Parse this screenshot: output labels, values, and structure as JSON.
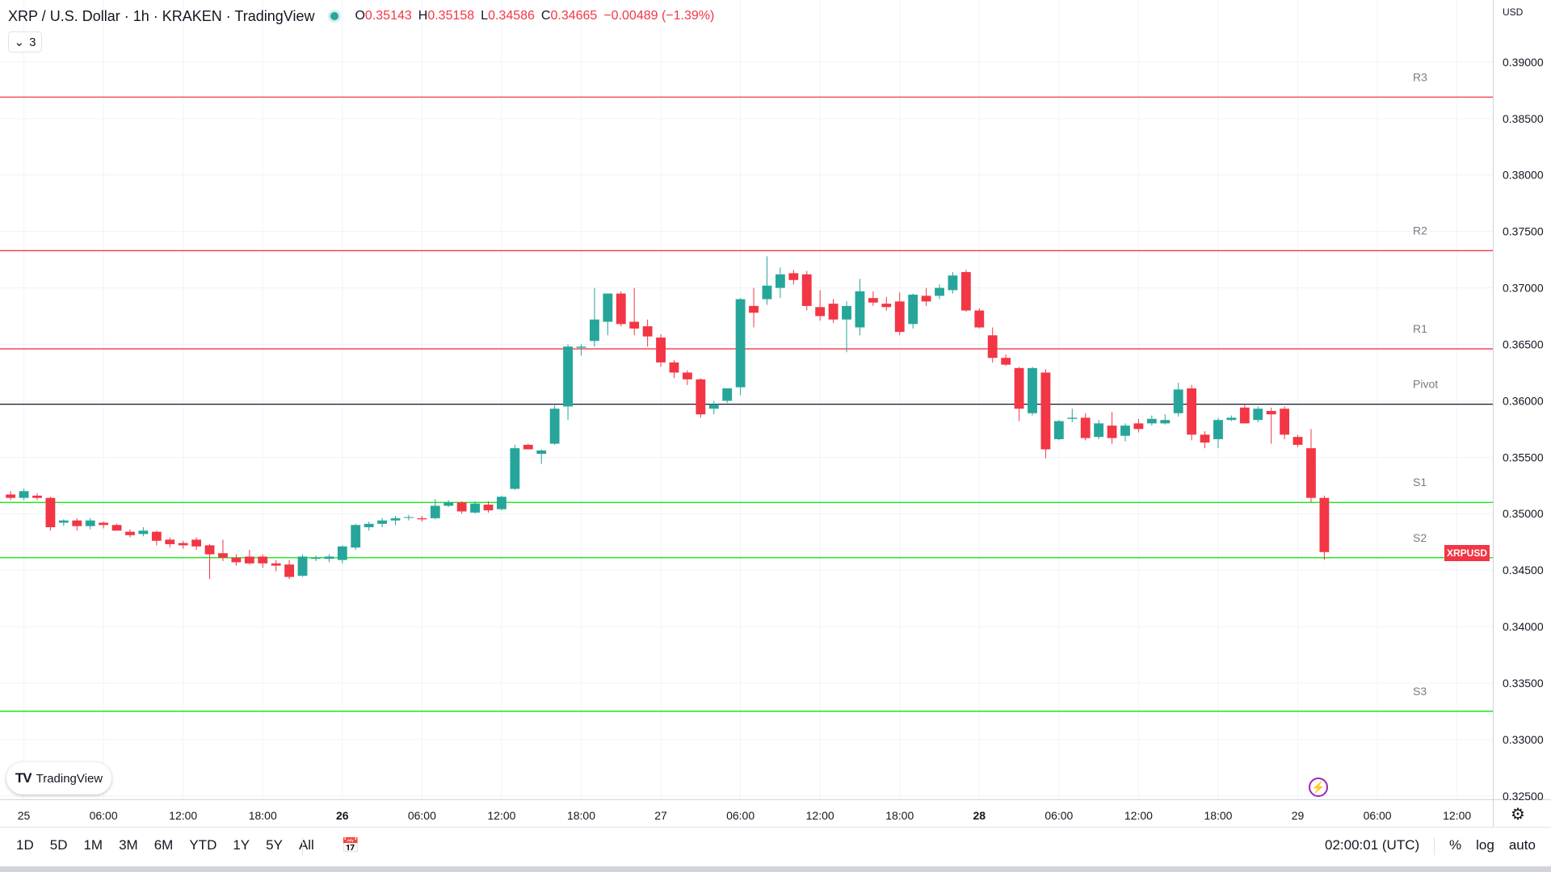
{
  "header": {
    "title": "XRP / U.S. Dollar · 1h · KRAKEN · TradingView",
    "ohlc": [
      {
        "key": "O",
        "value": "0.35143"
      },
      {
        "key": "H",
        "value": "0.35158"
      },
      {
        "key": "L",
        "value": "0.34586"
      },
      {
        "key": "C",
        "value": "0.34665"
      },
      {
        "key": "",
        "value": "−0.00489 (−1.39%)"
      }
    ],
    "indicator_count": "3",
    "status_color": "#26a69a"
  },
  "price_axis": {
    "currency": "USD"
  },
  "current_price_label": "XRPUSD",
  "bottom": {
    "timeframes": [
      "1D",
      "5D",
      "1M",
      "3M",
      "6M",
      "YTD",
      "1Y",
      "5Y",
      "All"
    ],
    "clock": "02:00:01 (UTC)",
    "percent": "%",
    "log": "log",
    "auto": "auto"
  },
  "logo_text": "TradingView",
  "colors": {
    "up": "#26a69a",
    "down": "#f23645",
    "resistance": "#f23645",
    "support": "#00e600",
    "pivot": "#131722"
  },
  "chart_data": {
    "type": "candlestick",
    "symbol": "XRP / U.S. Dollar",
    "interval": "1h",
    "exchange": "KRAKEN",
    "x_tick_labels": [
      {
        "hour": 0,
        "label": "25"
      },
      {
        "hour": 6,
        "label": "06:00"
      },
      {
        "hour": 12,
        "label": "12:00"
      },
      {
        "hour": 18,
        "label": "18:00"
      },
      {
        "hour": 24,
        "label": "26"
      },
      {
        "hour": 30,
        "label": "06:00"
      },
      {
        "hour": 36,
        "label": "12:00"
      },
      {
        "hour": 42,
        "label": "18:00"
      },
      {
        "hour": 48,
        "label": "27"
      },
      {
        "hour": 54,
        "label": "06:00"
      },
      {
        "hour": 60,
        "label": "12:00"
      },
      {
        "hour": 66,
        "label": "18:00"
      },
      {
        "hour": 72,
        "label": "28"
      },
      {
        "hour": 78,
        "label": "06:00"
      },
      {
        "hour": 84,
        "label": "12:00"
      },
      {
        "hour": 90,
        "label": "18:00"
      },
      {
        "hour": 96,
        "label": "29"
      },
      {
        "hour": 102,
        "label": "06:00"
      },
      {
        "hour": 108,
        "label": "12:00"
      }
    ],
    "bold_ticks": [
      "26",
      "28"
    ],
    "y_ticks": [
      "0.32500",
      "0.33000",
      "0.33500",
      "0.34000",
      "0.34500",
      "0.35000",
      "0.35500",
      "0.36000",
      "0.36500",
      "0.37000",
      "0.37500",
      "0.38000",
      "0.38500",
      "0.39000"
    ],
    "ylim": [
      0.3247,
      0.3955
    ],
    "xlim_hours": [
      -1.8,
      110.7
    ],
    "levels": [
      {
        "name": "R3",
        "value": 0.3869,
        "kind": "resistance"
      },
      {
        "name": "R2",
        "value": 0.3733,
        "kind": "resistance"
      },
      {
        "name": "R1",
        "value": 0.3646,
        "kind": "resistance"
      },
      {
        "name": "Pivot",
        "value": 0.3597,
        "kind": "pivot"
      },
      {
        "name": "S1",
        "value": 0.351,
        "kind": "support"
      },
      {
        "name": "S2",
        "value": 0.3461,
        "kind": "support"
      },
      {
        "name": "S3",
        "value": 0.3325,
        "kind": "support"
      }
    ],
    "candles": [
      [
        -1,
        0.3517,
        0.352,
        0.3512,
        0.3514
      ],
      [
        0,
        0.3514,
        0.3522,
        0.3512,
        0.352
      ],
      [
        1,
        0.3516,
        0.3518,
        0.3512,
        0.3514
      ],
      [
        2,
        0.3514,
        0.3515,
        0.3485,
        0.3488
      ],
      [
        3,
        0.3492,
        0.3495,
        0.3489,
        0.3494
      ],
      [
        4,
        0.3494,
        0.3496,
        0.3485,
        0.3489
      ],
      [
        5,
        0.3489,
        0.3496,
        0.3486,
        0.3494
      ],
      [
        6,
        0.3492,
        0.3493,
        0.3487,
        0.349
      ],
      [
        7,
        0.349,
        0.3491,
        0.3485,
        0.3485
      ],
      [
        8,
        0.3484,
        0.3486,
        0.3479,
        0.3481
      ],
      [
        9,
        0.3482,
        0.3488,
        0.348,
        0.3485
      ],
      [
        10,
        0.3484,
        0.3485,
        0.3472,
        0.3476
      ],
      [
        11,
        0.3477,
        0.3479,
        0.347,
        0.3473
      ],
      [
        12,
        0.3474,
        0.3476,
        0.3469,
        0.3472
      ],
      [
        13,
        0.3477,
        0.3479,
        0.3468,
        0.3471
      ],
      [
        14,
        0.3472,
        0.3473,
        0.3442,
        0.3464
      ],
      [
        15,
        0.3465,
        0.3477,
        0.3458,
        0.3461
      ],
      [
        16,
        0.3461,
        0.3464,
        0.3454,
        0.3457
      ],
      [
        17,
        0.3462,
        0.3468,
        0.3455,
        0.3456
      ],
      [
        18,
        0.3462,
        0.3464,
        0.3452,
        0.3456
      ],
      [
        19,
        0.3456,
        0.3459,
        0.3449,
        0.3454
      ],
      [
        20,
        0.3455,
        0.3459,
        0.3442,
        0.3444
      ],
      [
        21,
        0.3445,
        0.3464,
        0.3444,
        0.3462
      ],
      [
        22,
        0.346,
        0.3463,
        0.3458,
        0.3461
      ],
      [
        23,
        0.346,
        0.3464,
        0.3457,
        0.3462
      ],
      [
        24,
        0.3459,
        0.3472,
        0.3456,
        0.3471
      ],
      [
        25,
        0.347,
        0.3491,
        0.3468,
        0.349
      ],
      [
        26,
        0.3488,
        0.3493,
        0.3485,
        0.3491
      ],
      [
        27,
        0.3491,
        0.3496,
        0.3488,
        0.3494
      ],
      [
        28,
        0.3494,
        0.3498,
        0.349,
        0.3496
      ],
      [
        29,
        0.3497,
        0.3499,
        0.3494,
        0.3497
      ],
      [
        30,
        0.3496,
        0.3498,
        0.3493,
        0.3495
      ],
      [
        31,
        0.3496,
        0.3513,
        0.3495,
        0.3507
      ],
      [
        32,
        0.3507,
        0.3512,
        0.3506,
        0.351
      ],
      [
        33,
        0.351,
        0.3511,
        0.35,
        0.3502
      ],
      [
        34,
        0.3501,
        0.3511,
        0.35,
        0.3509
      ],
      [
        35,
        0.3508,
        0.3511,
        0.3501,
        0.3503
      ],
      [
        36,
        0.3504,
        0.3516,
        0.3503,
        0.3515
      ],
      [
        37,
        0.3522,
        0.3561,
        0.3521,
        0.3558
      ],
      [
        38,
        0.3561,
        0.3562,
        0.3557,
        0.3557
      ],
      [
        39,
        0.3553,
        0.3557,
        0.3544,
        0.3556
      ],
      [
        40,
        0.3562,
        0.3596,
        0.3561,
        0.3593
      ],
      [
        41,
        0.3595,
        0.365,
        0.3583,
        0.3648
      ],
      [
        42,
        0.3647,
        0.365,
        0.364,
        0.3648
      ],
      [
        43,
        0.3653,
        0.37,
        0.3648,
        0.3672
      ],
      [
        44,
        0.367,
        0.3695,
        0.3658,
        0.3695
      ],
      [
        45,
        0.3695,
        0.3697,
        0.3666,
        0.3668
      ],
      [
        46,
        0.367,
        0.37,
        0.3658,
        0.3664
      ],
      [
        47,
        0.3666,
        0.3672,
        0.3648,
        0.3657
      ],
      [
        48,
        0.3656,
        0.3659,
        0.363,
        0.3634
      ],
      [
        49,
        0.3634,
        0.3636,
        0.362,
        0.3625
      ],
      [
        50,
        0.3625,
        0.3627,
        0.3614,
        0.3619
      ],
      [
        51,
        0.3619,
        0.362,
        0.3585,
        0.3588
      ],
      [
        52,
        0.3593,
        0.36,
        0.3588,
        0.3597
      ],
      [
        53,
        0.36,
        0.3611,
        0.3598,
        0.3611
      ],
      [
        54,
        0.3612,
        0.3691,
        0.3605,
        0.369
      ],
      [
        55,
        0.3684,
        0.37,
        0.3665,
        0.3678
      ],
      [
        56,
        0.369,
        0.3728,
        0.3685,
        0.3702
      ],
      [
        57,
        0.37,
        0.3718,
        0.3691,
        0.3712
      ],
      [
        58,
        0.3713,
        0.3716,
        0.3703,
        0.3707
      ],
      [
        59,
        0.3712,
        0.3715,
        0.368,
        0.3684
      ],
      [
        60,
        0.3683,
        0.3698,
        0.3671,
        0.3675
      ],
      [
        61,
        0.3686,
        0.369,
        0.3669,
        0.3672
      ],
      [
        62,
        0.3672,
        0.3688,
        0.3643,
        0.3684
      ],
      [
        63,
        0.3665,
        0.3708,
        0.3658,
        0.3697
      ],
      [
        64,
        0.3691,
        0.3697,
        0.3684,
        0.3687
      ],
      [
        65,
        0.3686,
        0.3692,
        0.368,
        0.3683
      ],
      [
        66,
        0.3688,
        0.3696,
        0.3658,
        0.3661
      ],
      [
        67,
        0.3668,
        0.3695,
        0.3664,
        0.3694
      ],
      [
        68,
        0.3693,
        0.37,
        0.3684,
        0.3688
      ],
      [
        69,
        0.3693,
        0.3703,
        0.369,
        0.37
      ],
      [
        70,
        0.3698,
        0.3714,
        0.3695,
        0.3711
      ],
      [
        71,
        0.3714,
        0.3716,
        0.3679,
        0.368
      ],
      [
        72,
        0.368,
        0.3682,
        0.3664,
        0.3665
      ],
      [
        73,
        0.3658,
        0.3665,
        0.3634,
        0.3638
      ],
      [
        74,
        0.3638,
        0.3641,
        0.3631,
        0.3632
      ],
      [
        75,
        0.3629,
        0.363,
        0.3582,
        0.3593
      ],
      [
        76,
        0.3589,
        0.363,
        0.3587,
        0.3629
      ],
      [
        77,
        0.3625,
        0.3628,
        0.3549,
        0.3557
      ],
      [
        78,
        0.3566,
        0.3583,
        0.3565,
        0.3582
      ],
      [
        79,
        0.3584,
        0.3593,
        0.3581,
        0.3585
      ],
      [
        80,
        0.3585,
        0.3589,
        0.3565,
        0.3567
      ],
      [
        81,
        0.3568,
        0.3583,
        0.3566,
        0.358
      ],
      [
        82,
        0.3578,
        0.359,
        0.3562,
        0.3567
      ],
      [
        83,
        0.3569,
        0.358,
        0.3564,
        0.3578
      ],
      [
        84,
        0.358,
        0.3584,
        0.3572,
        0.3575
      ],
      [
        85,
        0.358,
        0.3587,
        0.3578,
        0.3584
      ],
      [
        86,
        0.358,
        0.3588,
        0.3579,
        0.3583
      ],
      [
        87,
        0.3589,
        0.3616,
        0.3586,
        0.361
      ],
      [
        88,
        0.3611,
        0.3614,
        0.3565,
        0.357
      ],
      [
        89,
        0.357,
        0.3573,
        0.3558,
        0.3563
      ],
      [
        90,
        0.3566,
        0.3585,
        0.3558,
        0.3583
      ],
      [
        91,
        0.3583,
        0.3587,
        0.3582,
        0.3585
      ],
      [
        92,
        0.3594,
        0.3597,
        0.358,
        0.358
      ],
      [
        93,
        0.3583,
        0.3595,
        0.3581,
        0.3593
      ],
      [
        94,
        0.3591,
        0.3594,
        0.3562,
        0.3588
      ],
      [
        95,
        0.3593,
        0.3595,
        0.3566,
        0.357
      ],
      [
        96,
        0.3568,
        0.357,
        0.3559,
        0.3561
      ],
      [
        97,
        0.3558,
        0.3575,
        0.351,
        0.3514
      ],
      [
        98,
        0.3514,
        0.3516,
        0.3459,
        0.3466
      ]
    ]
  }
}
